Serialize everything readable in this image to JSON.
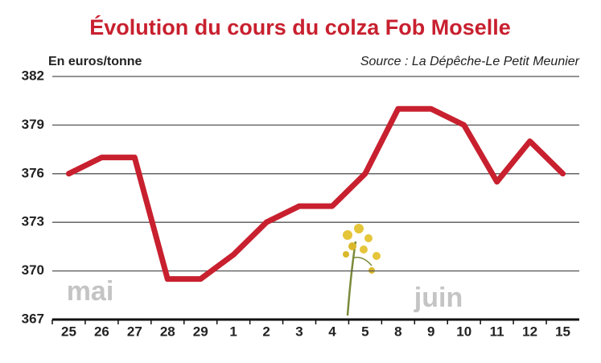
{
  "chart_data": {
    "type": "line",
    "title": "Évolution du cours du colza Fob Moselle",
    "y_label": "En euros/tonne",
    "source": "Source : La Dépêche-Le Petit Meunier",
    "annotations": [
      "mai",
      "juin"
    ],
    "categories": [
      "25",
      "26",
      "27",
      "28",
      "29",
      "1",
      "2",
      "3",
      "4",
      "5",
      "8",
      "9",
      "10",
      "11",
      "12",
      "15"
    ],
    "values": [
      376,
      377,
      377,
      369.5,
      369.5,
      371,
      373,
      374,
      374,
      376,
      380,
      380,
      379,
      375.5,
      378,
      376
    ],
    "color": "#c8202f",
    "ylim": [
      367,
      382
    ],
    "yticks": [
      367,
      370,
      373,
      376,
      379,
      382
    ],
    "grid": true
  }
}
